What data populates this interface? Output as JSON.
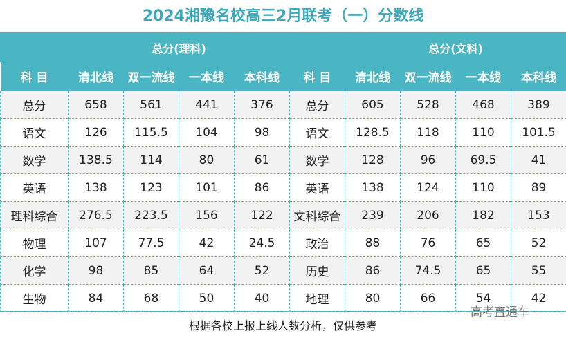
{
  "header": {
    "title": "2024湘豫名校高三2月联考（一）分数线"
  },
  "table": {
    "groups": [
      "总分(理科)",
      "总分(文科)"
    ],
    "columns": [
      "科 目",
      "清北线",
      "双一流线",
      "一本线",
      "本科线",
      "科 目",
      "清北线",
      "双一流线",
      "一本线",
      "本科线"
    ],
    "rows": [
      [
        "总分",
        "658",
        "561",
        "441",
        "376",
        "总分",
        "605",
        "528",
        "468",
        "389"
      ],
      [
        "语文",
        "126",
        "115.5",
        "104",
        "98",
        "语文",
        "128.5",
        "118",
        "110",
        "101.5"
      ],
      [
        "数学",
        "138.5",
        "114",
        "80",
        "61",
        "数学",
        "128",
        "96",
        "69.5",
        "41"
      ],
      [
        "英语",
        "138",
        "123",
        "101",
        "86",
        "英语",
        "138",
        "124",
        "110",
        "89"
      ],
      [
        "理科综合",
        "276.5",
        "223.5",
        "156",
        "122",
        "文科综合",
        "239",
        "206",
        "182",
        "153"
      ],
      [
        "物理",
        "107",
        "77.5",
        "42",
        "24.5",
        "政治",
        "88",
        "76",
        "65",
        "52"
      ],
      [
        "化学",
        "98",
        "85",
        "64",
        "52",
        "历史",
        "86",
        "74.5",
        "65",
        "55"
      ],
      [
        "生物",
        "84",
        "68",
        "50",
        "40",
        "地理",
        "80",
        "66",
        "54",
        "42"
      ]
    ]
  },
  "footer": {
    "note": "根据各校上报上线人数分析，仅供参考",
    "watermark": "高考直通车"
  }
}
